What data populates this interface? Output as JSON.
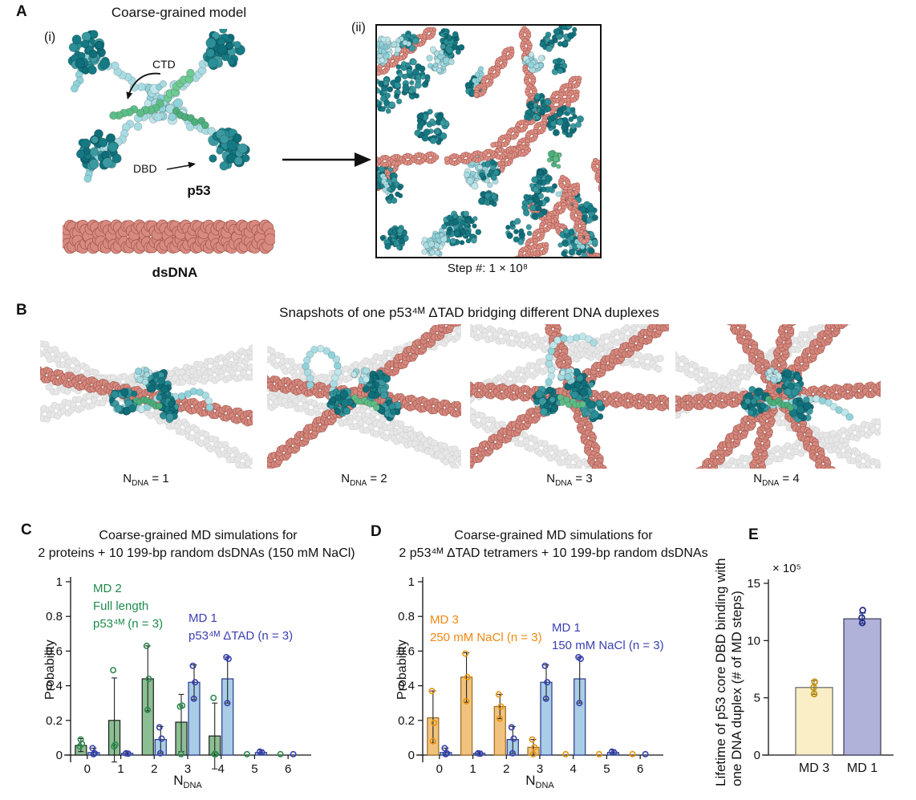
{
  "panelA": {
    "label": "A",
    "title": "Coarse-grained model",
    "sub_i": "(i)",
    "sub_ii": "(ii)",
    "ctd_label": "CTD",
    "dbd_label": "DBD",
    "p53_label": "p53",
    "dsdna_label": "dsDNA",
    "step_caption": "Step #: 1 × 10⁸"
  },
  "panelB": {
    "label": "B",
    "title": "Snapshots of one p53⁴ᴹ ΔTAD bridging different DNA duplexes",
    "snapshots": [
      {
        "n_pre": "N",
        "n_sub": "DNA",
        "n_val": " = 1"
      },
      {
        "n_pre": "N",
        "n_sub": "DNA",
        "n_val": " = 2"
      },
      {
        "n_pre": "N",
        "n_sub": "DNA",
        "n_val": " = 3"
      },
      {
        "n_pre": "N",
        "n_sub": "DNA",
        "n_val": " = 4"
      }
    ]
  },
  "panelC": {
    "label": "C"
  },
  "panelD": {
    "label": "D"
  },
  "panelE": {
    "label": "E"
  },
  "colors": {
    "protein_dark_teal": "#1b7f88",
    "protein_light_cyan": "#a9dce2",
    "protein_green": "#63c08c",
    "dna_salmon": "#d98a80",
    "background_dna_gray": "#e4e4e4"
  },
  "chart_data": [
    {
      "id": "C",
      "type": "bar",
      "title_lines": [
        "Coarse-grained MD simulations for",
        "2 proteins + 10 199-bp random dsDNAs (150 mM NaCl)"
      ],
      "ylabel": "Probability",
      "xlabel_pre": "N",
      "xlabel_sub": "DNA",
      "categories": [
        "0",
        "1",
        "2",
        "3",
        "4",
        "5",
        "6"
      ],
      "ylim": [
        0,
        1
      ],
      "yticks": [
        "0",
        "0.2",
        "0.4",
        "0.6",
        "0.8",
        "1"
      ],
      "grid": false,
      "series": [
        {
          "name": "MD 2 Full length p53⁴ᴹ (n = 3)",
          "legend_lines": [
            "MD 2",
            "Full length",
            "p53⁴ᴹ (n = 3)"
          ],
          "fill": "#8cbe93",
          "edge": "#1c1c1c",
          "point_color": "#2e8b4f",
          "text_color": "#1f8a4c",
          "err_color": "#222222",
          "values": [
            0.055,
            0.2,
            0.44,
            0.19,
            0.11,
            0,
            0
          ],
          "err_lo": [
            0.02,
            -0.04,
            0.255,
            0.02,
            -0.08,
            0,
            0
          ],
          "err_hi": [
            0.095,
            0.445,
            0.63,
            0.35,
            0.3,
            0,
            0
          ],
          "points": [
            [
              0.05,
              0.065,
              0.09
            ],
            [
              0.49,
              0.06,
              0.05
            ],
            [
              0.63,
              0.44,
              0.26
            ],
            [
              0.28,
              0.285,
              0.005
            ],
            [
              0.33,
              0.005,
              0.005
            ],
            [
              0.005
            ],
            [
              0.005
            ]
          ]
        },
        {
          "name": "MD 1 p53⁴ᴹ ΔTAD (n = 3)",
          "legend_lines": [
            "MD 1",
            "p53⁴ᴹ ΔTAD (n = 3)"
          ],
          "fill": "#a9cde6",
          "edge": "#273a8c",
          "point_color": "#3742b0",
          "text_color": "#3a3fb0",
          "err_color": "#222222",
          "values": [
            0.015,
            0.01,
            0.09,
            0.42,
            0.44,
            0.015,
            0
          ],
          "err_lo": [
            0,
            0,
            0.01,
            0.32,
            0.3,
            0.005,
            0
          ],
          "err_hi": [
            0.04,
            0.02,
            0.165,
            0.52,
            0.565,
            0.03,
            0
          ],
          "points": [
            [
              0.04,
              0.01,
              0.005
            ],
            [
              0.01,
              0.008
            ],
            [
              0.16,
              0.095,
              0.01
            ],
            [
              0.515,
              0.42,
              0.325
            ],
            [
              0.565,
              0.555,
              0.3
            ],
            [
              0.02,
              0.015
            ],
            [
              0.005
            ]
          ]
        }
      ]
    },
    {
      "id": "D",
      "type": "bar",
      "title_lines": [
        "Coarse-grained MD simulations for",
        "2 p53⁴ᴹ ΔTAD tetramers + 10 199-bp random dsDNAs"
      ],
      "ylabel": "Probability",
      "xlabel_pre": "N",
      "xlabel_sub": "DNA",
      "categories": [
        "0",
        "1",
        "2",
        "3",
        "4",
        "5",
        "6"
      ],
      "ylim": [
        0,
        1
      ],
      "yticks": [
        "0",
        "0.2",
        "0.4",
        "0.6",
        "0.8",
        "1"
      ],
      "grid": false,
      "series": [
        {
          "name": "MD 3 250 mM NaCl (n = 3)",
          "legend_lines": [
            "MD 3",
            "250 mM NaCl (n = 3)"
          ],
          "fill": "#f0c27d",
          "edge": "#9c6b1e",
          "point_color": "#e8930c",
          "text_color": "#f0880f",
          "err_color": "#222222",
          "values": [
            0.215,
            0.45,
            0.28,
            0.045,
            0,
            0,
            0
          ],
          "err_lo": [
            0.07,
            0.305,
            0.21,
            0,
            0,
            0,
            0
          ],
          "err_hi": [
            0.37,
            0.59,
            0.35,
            0.09,
            0,
            0,
            0
          ],
          "points": [
            [
              0.37,
              0.185,
              0.08
            ],
            [
              0.585,
              0.45,
              0.31
            ],
            [
              0.35,
              0.28,
              0.21
            ],
            [
              0.09,
              0.045,
              0.005
            ],
            [
              0.005
            ],
            [
              0.005
            ],
            [
              0.005
            ]
          ]
        },
        {
          "name": "MD 1 150 mM NaCl (n = 3)",
          "legend_lines": [
            "MD 1",
            "150 mM NaCl (n = 3)"
          ],
          "fill": "#a9cde6",
          "edge": "#273a8c",
          "point_color": "#3742b0",
          "text_color": "#3a3fb0",
          "err_color": "#222222",
          "values": [
            0.015,
            0.01,
            0.09,
            0.42,
            0.44,
            0.015,
            0
          ],
          "err_lo": [
            0,
            0,
            0.01,
            0.32,
            0.3,
            0.005,
            0
          ],
          "err_hi": [
            0.04,
            0.02,
            0.165,
            0.52,
            0.565,
            0.03,
            0
          ],
          "points": [
            [
              0.04,
              0.01,
              0.005
            ],
            [
              0.01,
              0.008
            ],
            [
              0.16,
              0.095,
              0.01
            ],
            [
              0.515,
              0.42,
              0.325
            ],
            [
              0.565,
              0.555,
              0.3
            ],
            [
              0.02,
              0.015
            ],
            [
              0.005
            ]
          ]
        }
      ]
    },
    {
      "id": "E",
      "type": "bar",
      "ylabel_lines": [
        "Lifetime of p53 core DBD binding with",
        "one DNA duplex (# of MD steps)"
      ],
      "scale_label": "× 10⁵",
      "categories": [
        "MD 3",
        "MD 1"
      ],
      "ylim": [
        0,
        15
      ],
      "yticks": [
        "0",
        "5",
        "10",
        "15"
      ],
      "grid": false,
      "series": [
        {
          "name": "Lifetime of p53 core DBD binding",
          "values": [
            5.9,
            11.9
          ],
          "err_lo": [
            5.3,
            11.5
          ],
          "err_hi": [
            6.5,
            12.4
          ],
          "points": [
            [
              6.4,
              5.9,
              5.35
            ],
            [
              12.65,
              12.0,
              11.55
            ]
          ],
          "fills": [
            "#f9eec6",
            "#b0b2da"
          ],
          "edges": [
            "#6e6e6e",
            "#44455e"
          ],
          "point_colors": [
            "#c09010",
            "#232d8f"
          ],
          "err_colors": [
            "#8a6d00",
            "#1e2a6e"
          ],
          "label_colors": [
            "#f0880f",
            "#3a3fb0"
          ]
        }
      ]
    }
  ]
}
